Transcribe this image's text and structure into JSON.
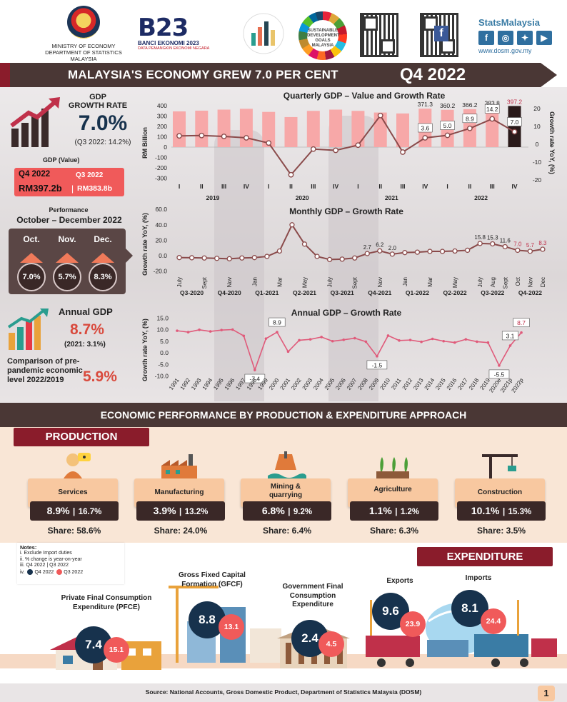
{
  "header": {
    "ministry_line1": "MINISTRY OF ECONOMY",
    "ministry_line2": "DEPARTMENT OF STATISTICS MALAYSIA",
    "banci_title": "BANCI EKONOMI 2023",
    "banci_subtitle": "DATA PEMANGKIN EKONOMI NEGARA",
    "banci_mark": "B23",
    "sdg_text": "SUSTAINABLE DEVELOPMENT GOALS MALAYSIA",
    "stats_brand": "StatsMalaysia",
    "stats_url": "www.dosm.gov.my",
    "social_icons": [
      "facebook-icon",
      "instagram-icon",
      "twitter-icon",
      "youtube-icon"
    ]
  },
  "title_banner": {
    "title": "MALAYSIA'S ECONOMY GREW 7.0 PER CENT",
    "quarter": "Q4 2022"
  },
  "gdp_summary": {
    "growth_label_1": "GDP",
    "growth_label_2": "GROWTH RATE",
    "growth_value": "7.0%",
    "growth_prev": "(Q3 2022: 14.2%)",
    "value_label": "GDP (Value)",
    "q4_label": "Q4 2022",
    "q3_label": "Q3 2022",
    "q4_value": "RM397.2b",
    "separator": "|",
    "q3_value": "RM383.8b"
  },
  "performance": {
    "label": "Performance",
    "period": "October – December 2022",
    "months": [
      {
        "month": "Oct.",
        "value": "7.0%"
      },
      {
        "month": "Nov.",
        "value": "5.7%"
      },
      {
        "month": "Dec.",
        "value": "8.3%"
      }
    ]
  },
  "annual": {
    "label": "Annual GDP",
    "value": "8.7%",
    "prev": "(2021: 3.1%)",
    "compare_label": "Comparison of pre-pandemic economic level 2022/2019",
    "compare_value": "5.9%"
  },
  "chart_data": [
    {
      "type": "bar",
      "title": "Quarterly GDP – Value and Growth Rate",
      "ylabel": "RM Billion",
      "y2label": "Growth rate YoY, (%)",
      "ylim": [
        -300,
        400
      ],
      "y2lim": [
        -20,
        20
      ],
      "yticks": [
        "400",
        "300",
        "200",
        "100",
        "0",
        "-100",
        "-200",
        "-300"
      ],
      "y2ticks": [
        "20",
        "10",
        "0",
        "-10",
        "-20"
      ],
      "categories": [
        "I",
        "II",
        "III",
        "IV",
        "I",
        "II",
        "III",
        "IV",
        "I",
        "II",
        "III",
        "IV",
        "I",
        "II",
        "III",
        "IV"
      ],
      "years": [
        "2019",
        "2020",
        "2021",
        "2022"
      ],
      "series": [
        {
          "name": "GDP value",
          "values": [
            345,
            352,
            362,
            370,
            340,
            290,
            350,
            362,
            350,
            334,
            325,
            371.3,
            360.2,
            366.2,
            383.8,
            397.2
          ]
        },
        {
          "name": "Growth rate",
          "values": [
            4.7,
            4.9,
            4.4,
            3.6,
            0.7,
            -17.1,
            -2.7,
            -3.4,
            -0.5,
            16.1,
            -4.4,
            3.6,
            5.0,
            8.9,
            14.2,
            7.0
          ]
        }
      ],
      "value_labels": [
        "371.3",
        "360.2",
        "366.2",
        "383.8",
        "397.2"
      ],
      "growth_labels": [
        "3.6",
        "5.0",
        "8.9",
        "14.2",
        "7.0"
      ],
      "colors": {
        "bar": "#f7a8a8",
        "bar_latest": "#2a1a1a",
        "line": "#8a4a4a",
        "label_latest": "#c0304a"
      }
    },
    {
      "type": "line",
      "title": "Monthly GDP – Growth Rate",
      "ylabel": "Growth rate YoY, (%)",
      "ylim": [
        -20,
        60
      ],
      "yticks": [
        "60.0",
        "40.0",
        "20.0",
        "0.0",
        "-20.0"
      ],
      "x": [
        "July",
        "Aug",
        "Sept",
        "Oct",
        "Nov",
        "Dec",
        "Jan",
        "Feb",
        "Mar",
        "Apr",
        "May",
        "Jun",
        "July",
        "Aug",
        "Sept",
        "Oct",
        "Nov",
        "Dec",
        "Jan",
        "Feb",
        "Mar",
        "Apr",
        "May",
        "Jun",
        "July",
        "Aug",
        "Sept",
        "Oct",
        "Nov",
        "Dec"
      ],
      "x_tick_labels": [
        "July",
        "Sept",
        "Nov",
        "Jan",
        "Mar",
        "May",
        "July",
        "Sept",
        "Nov",
        "Jan",
        "Mar",
        "May",
        "July",
        "Aug",
        "Sept",
        "Oct",
        "Nov",
        "Dec"
      ],
      "groups": [
        "Q3-2020",
        "Q4-2020",
        "Q1-2021",
        "Q2-2021",
        "Q3-2021",
        "Q4-2021",
        "Q1-2022",
        "Q2-2022",
        "Q3-2022",
        "Q4-2022"
      ],
      "values": [
        -2.5,
        -2.7,
        -3.0,
        -3.5,
        -4.0,
        -3.0,
        -2.5,
        -1.0,
        6.0,
        40.0,
        15.0,
        -1.0,
        -5.0,
        -4.5,
        -3.0,
        2.7,
        6.2,
        2.0,
        4.0,
        4.5,
        5.5,
        5.5,
        6.0,
        7.0,
        15.8,
        15.3,
        11.6,
        7.0,
        5.7,
        8.3
      ],
      "labels": [
        {
          "index": 15,
          "text": "2.7"
        },
        {
          "index": 16,
          "text": "6.2"
        },
        {
          "index": 17,
          "text": "2.0"
        },
        {
          "index": 24,
          "text": "15.8"
        },
        {
          "index": 25,
          "text": "15.3"
        },
        {
          "index": 26,
          "text": "11.6"
        },
        {
          "index": 27,
          "text": "7.0"
        },
        {
          "index": 28,
          "text": "5.7"
        },
        {
          "index": 29,
          "text": "8.3"
        }
      ],
      "colors": {
        "line": "#8a4a4a",
        "latest_labels": "#c0304a"
      }
    },
    {
      "type": "line",
      "title": "Annual GDP – Growth Rate",
      "ylabel": "Growth rate YoY, (%)",
      "ylim": [
        -10,
        15
      ],
      "yticks": [
        "15.0",
        "10.0",
        "5.0",
        "0.0",
        "-5.0",
        "-10.0"
      ],
      "x": [
        "1991",
        "1992",
        "1993",
        "1994",
        "1995",
        "1996",
        "1997",
        "1998",
        "1999",
        "2000",
        "2001",
        "2002",
        "2003",
        "2004",
        "2005",
        "2006",
        "2007",
        "2008",
        "2009",
        "2010",
        "2011",
        "2012",
        "2013",
        "2014",
        "2015",
        "2016",
        "2017",
        "2018",
        "2019",
        "2020e",
        "2021p",
        "2022p"
      ],
      "x_tick_labels": [
        "1991",
        "1992",
        "1993",
        "1994",
        "1995",
        "1996",
        "1997",
        "1998",
        "1999",
        "2000",
        "2001",
        "2002",
        "2003",
        "2004",
        "2005",
        "2006",
        "2007",
        "2008",
        "2009",
        "2010",
        "2011",
        "2012",
        "2013",
        "2014",
        "2015",
        "2016",
        "2017",
        "2018",
        "2019",
        "2020e",
        "2021p",
        "2022p"
      ],
      "values": [
        9.5,
        8.9,
        9.9,
        9.2,
        9.8,
        10.0,
        7.3,
        -7.4,
        6.1,
        8.9,
        0.5,
        5.4,
        5.8,
        6.8,
        5.0,
        5.6,
        6.3,
        4.8,
        -1.5,
        7.4,
        5.3,
        5.5,
        4.7,
        6.0,
        5.0,
        4.4,
        5.8,
        4.8,
        4.4,
        -5.5,
        3.1,
        8.7
      ],
      "labels": [
        {
          "index": 7,
          "text": "-7.4"
        },
        {
          "index": 9,
          "text": "8.9"
        },
        {
          "index": 18,
          "text": "-1.5"
        },
        {
          "index": 29,
          "text": "-5.5"
        },
        {
          "index": 30,
          "text": "3.1"
        },
        {
          "index": 31,
          "text": "8.7"
        }
      ],
      "colors": {
        "line": "#e05a7a",
        "latest_label": "#c0304a"
      }
    }
  ],
  "section": {
    "title": "ECONOMIC PERFORMANCE BY PRODUCTION & EXPENDITURE APPROACH"
  },
  "production": {
    "header": "PRODUCTION",
    "sectors": [
      {
        "name": "Services",
        "q4": "8.9%",
        "q3": "16.7%",
        "share": "Share: 58.6%",
        "icon": "services-icon"
      },
      {
        "name": "Manufacturing",
        "q4": "3.9%",
        "q3": "13.2%",
        "share": "Share: 24.0%",
        "icon": "factory-icon"
      },
      {
        "name": "Mining & quarrying",
        "q4": "6.8%",
        "q3": "9.2%",
        "share": "Share: 6.4%",
        "icon": "oil-rig-icon"
      },
      {
        "name": "Agriculture",
        "q4": "1.1%",
        "q3": "1.2%",
        "share": "Share: 6.3%",
        "icon": "agriculture-icon"
      },
      {
        "name": "Construction",
        "q4": "10.1%",
        "q3": "15.3%",
        "share": "Share: 3.5%",
        "icon": "crane-icon"
      }
    ],
    "separator": "|"
  },
  "notes": {
    "title": "Notes:",
    "items": [
      "i.   Exclude Import duties",
      "ii.  % change is year-on-year",
      "iii. Q4 2022 | Q3 2022",
      "iv."
    ],
    "legend_q4": "Q4 2022",
    "legend_q3": "Q3 2022"
  },
  "expenditure": {
    "header": "EXPENDITURE",
    "items": [
      {
        "label": "Private Final Consumption Expenditure (PFCE)",
        "q4": "7.4",
        "q3": "15.1"
      },
      {
        "label": "Gross Fixed Capital Formation (GFCF)",
        "q4": "8.8",
        "q3": "13.1"
      },
      {
        "label": "Government Final Consumption Expenditure",
        "q4": "2.4",
        "q3": "4.5"
      },
      {
        "label": "Exports",
        "q4": "9.6",
        "q3": "23.9"
      },
      {
        "label": "Imports",
        "q4": "8.1",
        "q3": "24.4"
      }
    ],
    "colors": {
      "q4": "#17324d",
      "q3": "#f05a5a"
    }
  },
  "footer": {
    "source": "Source: National Accounts, Gross Domestic Product, Department of Statistics Malaysia (DOSM)",
    "page": "1"
  }
}
